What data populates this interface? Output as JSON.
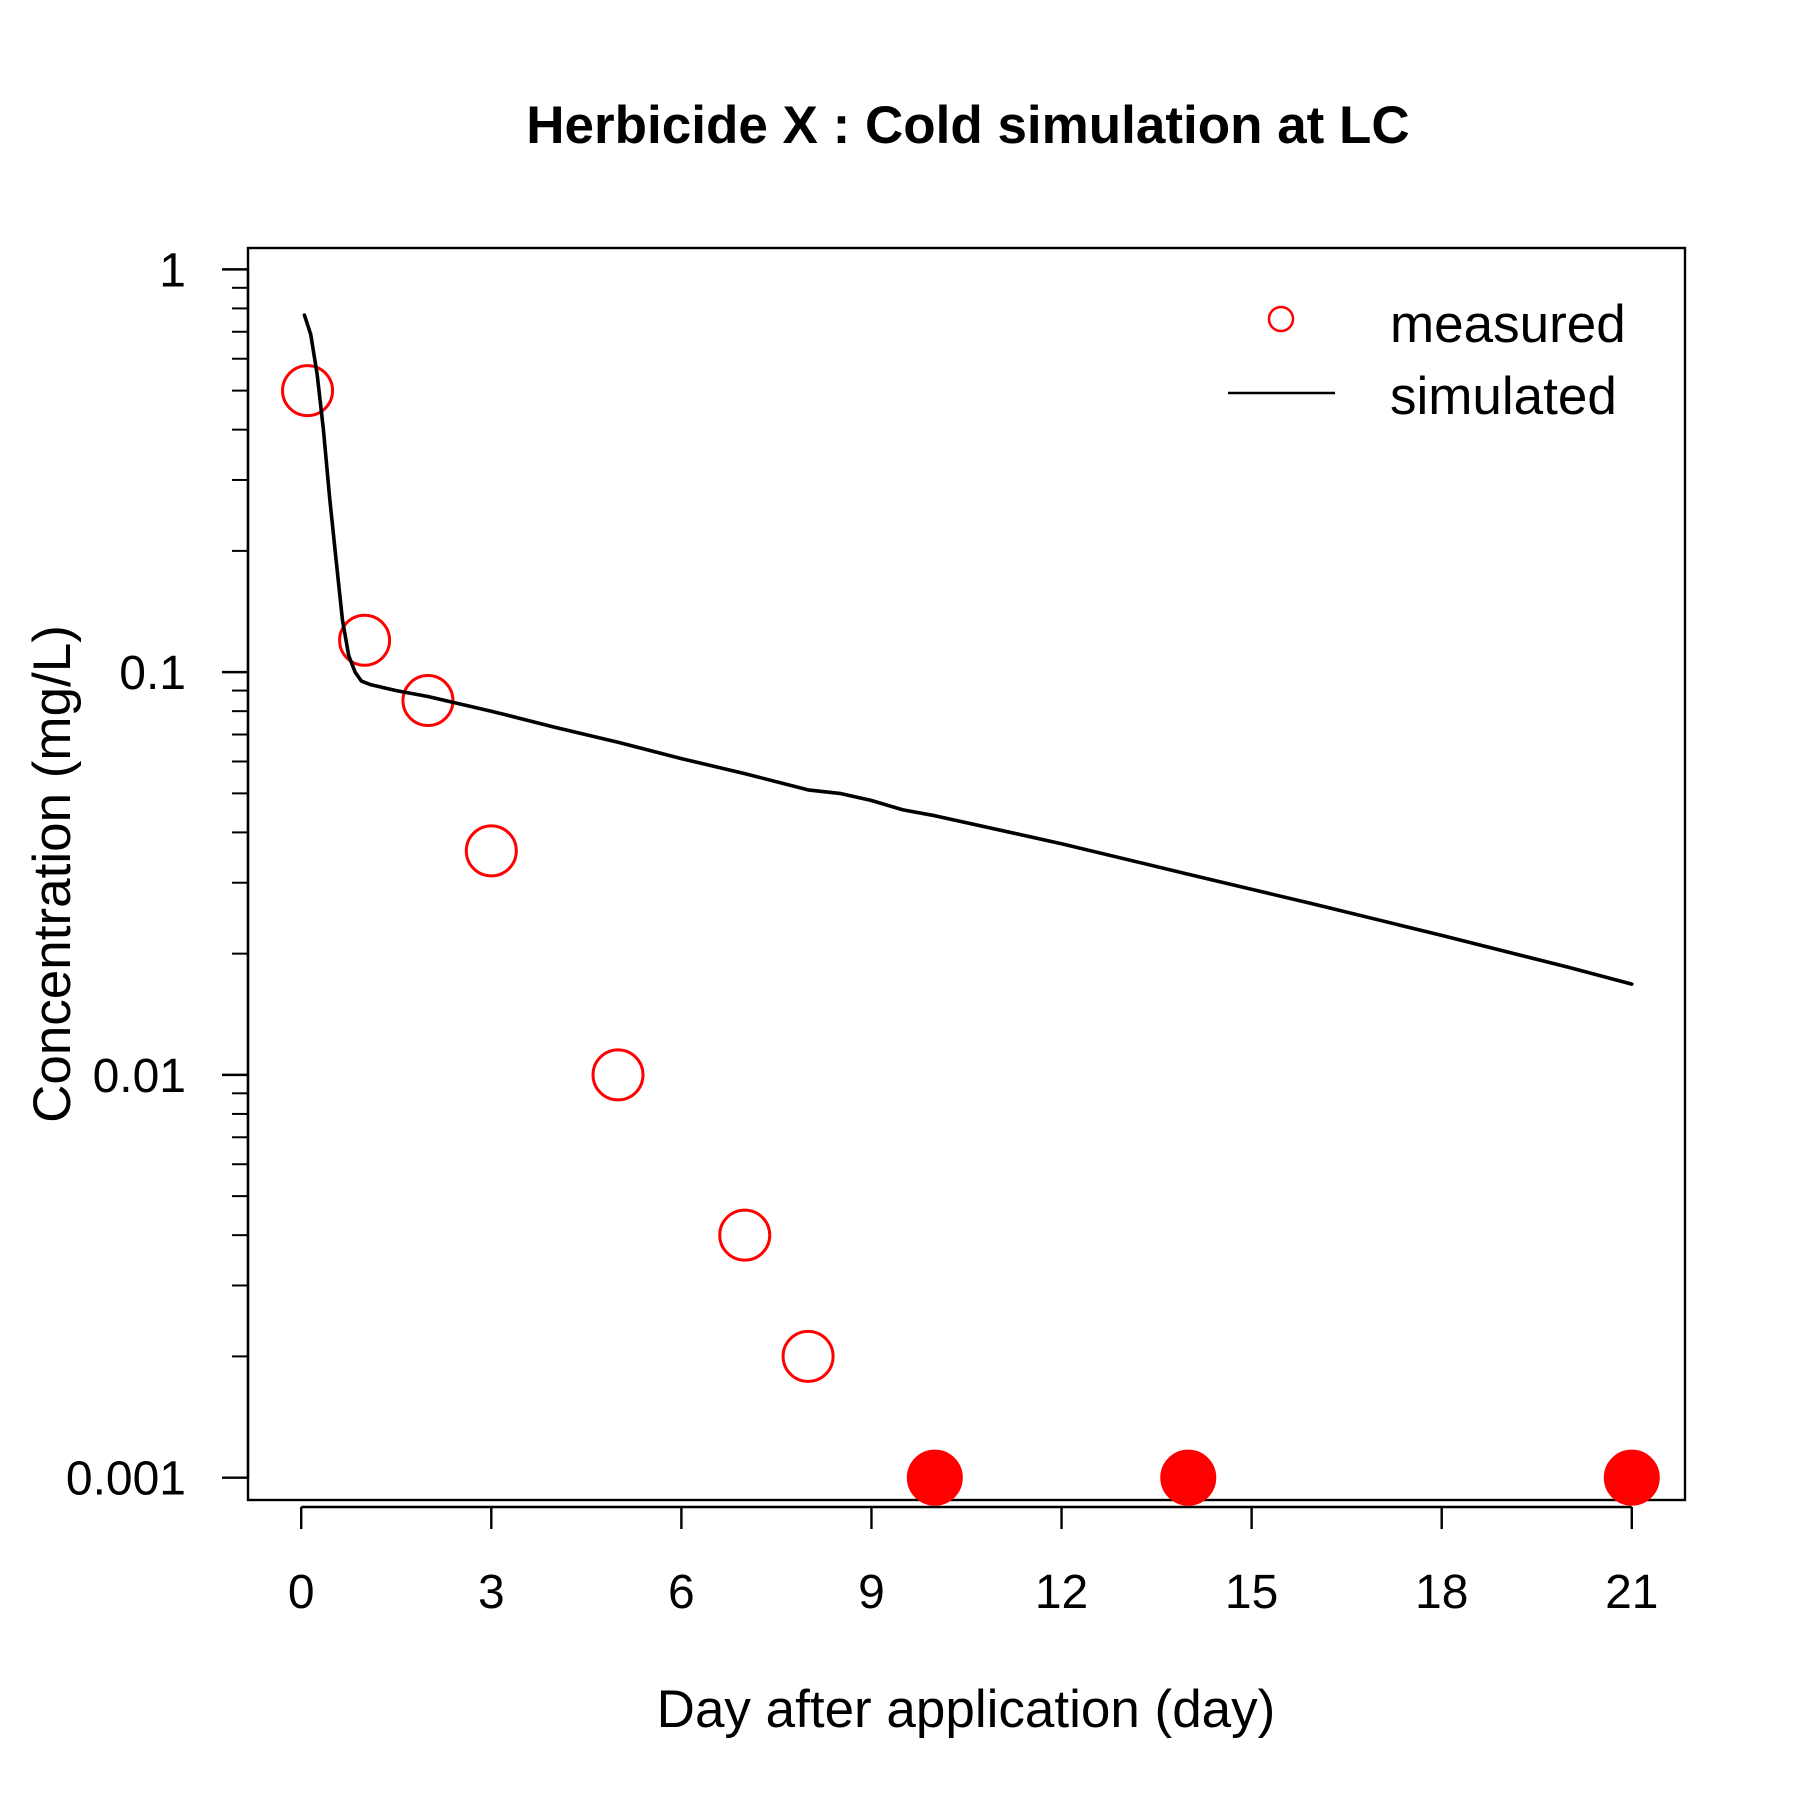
{
  "chart_data": {
    "type": "scatter",
    "title": "Herbicide X : Cold simulation at  LC",
    "xlabel": "Day after application (day)",
    "ylabel": "Concentration (mg/L)",
    "xlim": [
      -0.84,
      21.84
    ],
    "ylim": [
      0.00088,
      1.13
    ],
    "y_scale": "log",
    "x_ticks": [
      0,
      3,
      6,
      9,
      12,
      15,
      18,
      21
    ],
    "x_tick_labels": [
      "0",
      "3",
      "6",
      "9",
      "12",
      "15",
      "18",
      "21"
    ],
    "y_ticks": [
      0.001,
      0.01,
      0.1,
      1
    ],
    "y_tick_labels": [
      "0.001",
      "0.01",
      "0.1",
      "1"
    ],
    "grid": false,
    "legend_position": "top-right",
    "legend": [
      {
        "label": "measured",
        "marker": "open-circle",
        "color": "#ff0000"
      },
      {
        "label": "simulated",
        "marker": "line",
        "color": "#000000"
      }
    ],
    "series": [
      {
        "name": "measured",
        "style": "points",
        "color": "#ff0000",
        "x": [
          0.1,
          1,
          2,
          3,
          5,
          7,
          8
        ],
        "y": [
          0.5,
          0.12,
          0.085,
          0.036,
          0.01,
          0.004,
          0.002
        ]
      },
      {
        "name": "measured",
        "style": "filled-points",
        "color": "#ff0000",
        "x": [
          10,
          14,
          21
        ],
        "y": [
          0.001,
          0.001,
          0.001
        ]
      },
      {
        "name": "simulated",
        "style": "line",
        "color": "#000000",
        "x": [
          0.05,
          0.15,
          0.25,
          0.35,
          0.45,
          0.55,
          0.65,
          0.75,
          0.85,
          0.95,
          1.1,
          1.5,
          2,
          3,
          4,
          5,
          6,
          7,
          8,
          8.5,
          9,
          9.5,
          10,
          12,
          14,
          16,
          18,
          20,
          21
        ],
        "y": [
          0.77,
          0.69,
          0.55,
          0.4,
          0.27,
          0.19,
          0.135,
          0.11,
          0.1,
          0.095,
          0.093,
          0.09,
          0.087,
          0.08,
          0.073,
          0.067,
          0.061,
          0.056,
          0.051,
          0.05,
          0.048,
          0.0455,
          0.044,
          0.0375,
          0.0315,
          0.0265,
          0.0222,
          0.0185,
          0.0168
        ]
      }
    ]
  }
}
